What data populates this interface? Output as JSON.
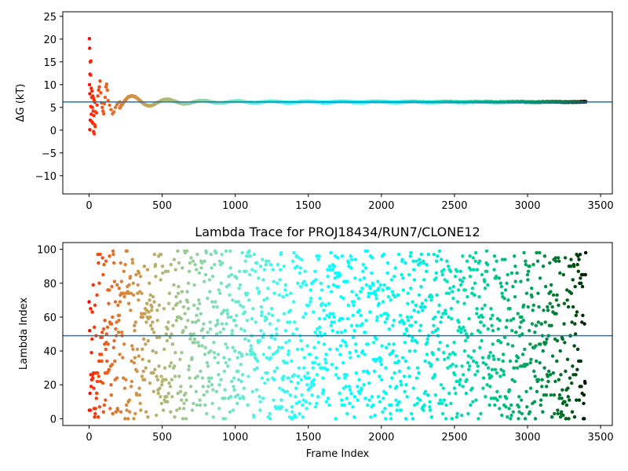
{
  "chart_data": [
    {
      "type": "scatter",
      "title": "",
      "xlabel": "",
      "ylabel": "ΔG (kT)",
      "xlim": [
        -180,
        3580
      ],
      "ylim": [
        -14,
        26
      ],
      "xticks": [
        0,
        500,
        1000,
        1500,
        2000,
        2500,
        3000,
        3500
      ],
      "yticks": [
        -10,
        -5,
        0,
        5,
        10,
        15,
        20,
        25
      ],
      "colormap": "rainbow",
      "n_points": 3400,
      "converged_value": 6.2,
      "early_points": [
        [
          2,
          20.1
        ],
        [
          4,
          18.0
        ],
        [
          8,
          15.0
        ],
        [
          12,
          15.2
        ],
        [
          6,
          12.3
        ],
        [
          10,
          12.1
        ],
        [
          3,
          10.0
        ],
        [
          15,
          9.2
        ],
        [
          20,
          8.6
        ],
        [
          5,
          8.0
        ],
        [
          25,
          7.5
        ],
        [
          18,
          7.2
        ],
        [
          30,
          7.0
        ],
        [
          35,
          6.5
        ],
        [
          40,
          6.1
        ],
        [
          12,
          5.2
        ],
        [
          22,
          5.0
        ],
        [
          28,
          4.2
        ],
        [
          45,
          4.0
        ],
        [
          50,
          3.8
        ],
        [
          15,
          3.5
        ],
        [
          32,
          3.2
        ],
        [
          8,
          2.2
        ],
        [
          20,
          1.8
        ],
        [
          26,
          1.5
        ],
        [
          38,
          1.2
        ],
        [
          42,
          0.8
        ],
        [
          5,
          0.1
        ],
        [
          30,
          -0.3
        ],
        [
          35,
          -0.8
        ],
        [
          55,
          5.5
        ],
        [
          60,
          7.5
        ],
        [
          65,
          8.8
        ],
        [
          70,
          9.5
        ],
        [
          75,
          10.8
        ],
        [
          80,
          8.2
        ],
        [
          85,
          6.0
        ],
        [
          90,
          5.0
        ],
        [
          95,
          4.2
        ],
        [
          100,
          3.6
        ],
        [
          105,
          5.8
        ],
        [
          110,
          7.2
        ],
        [
          115,
          9.5
        ],
        [
          120,
          10.1
        ],
        [
          125,
          8.8
        ],
        [
          130,
          6.5
        ],
        [
          140,
          5.5
        ],
        [
          150,
          4.5
        ],
        [
          160,
          3.6
        ],
        [
          170,
          4.0
        ],
        [
          180,
          5.0
        ],
        [
          190,
          5.6
        ],
        [
          200,
          6.0
        ],
        [
          210,
          6.2
        ]
      ],
      "horizontal_line": 6.2,
      "line_color": "#1f77b4"
    },
    {
      "type": "scatter",
      "title": "Lambda Trace for PROJ18434/RUN7/CLONE12",
      "xlabel": "Frame Index",
      "ylabel": "Lambda Index",
      "xlim": [
        -180,
        3580
      ],
      "ylim": [
        -4,
        104
      ],
      "xticks": [
        0,
        500,
        1000,
        1500,
        2000,
        2500,
        3000,
        3500
      ],
      "yticks": [
        0,
        20,
        40,
        60,
        80,
        100
      ],
      "colormap": "rainbow",
      "n_points": 3400,
      "lambda_range": [
        0,
        99
      ],
      "horizontal_line": 49,
      "line_color": "#1f77b4"
    }
  ]
}
